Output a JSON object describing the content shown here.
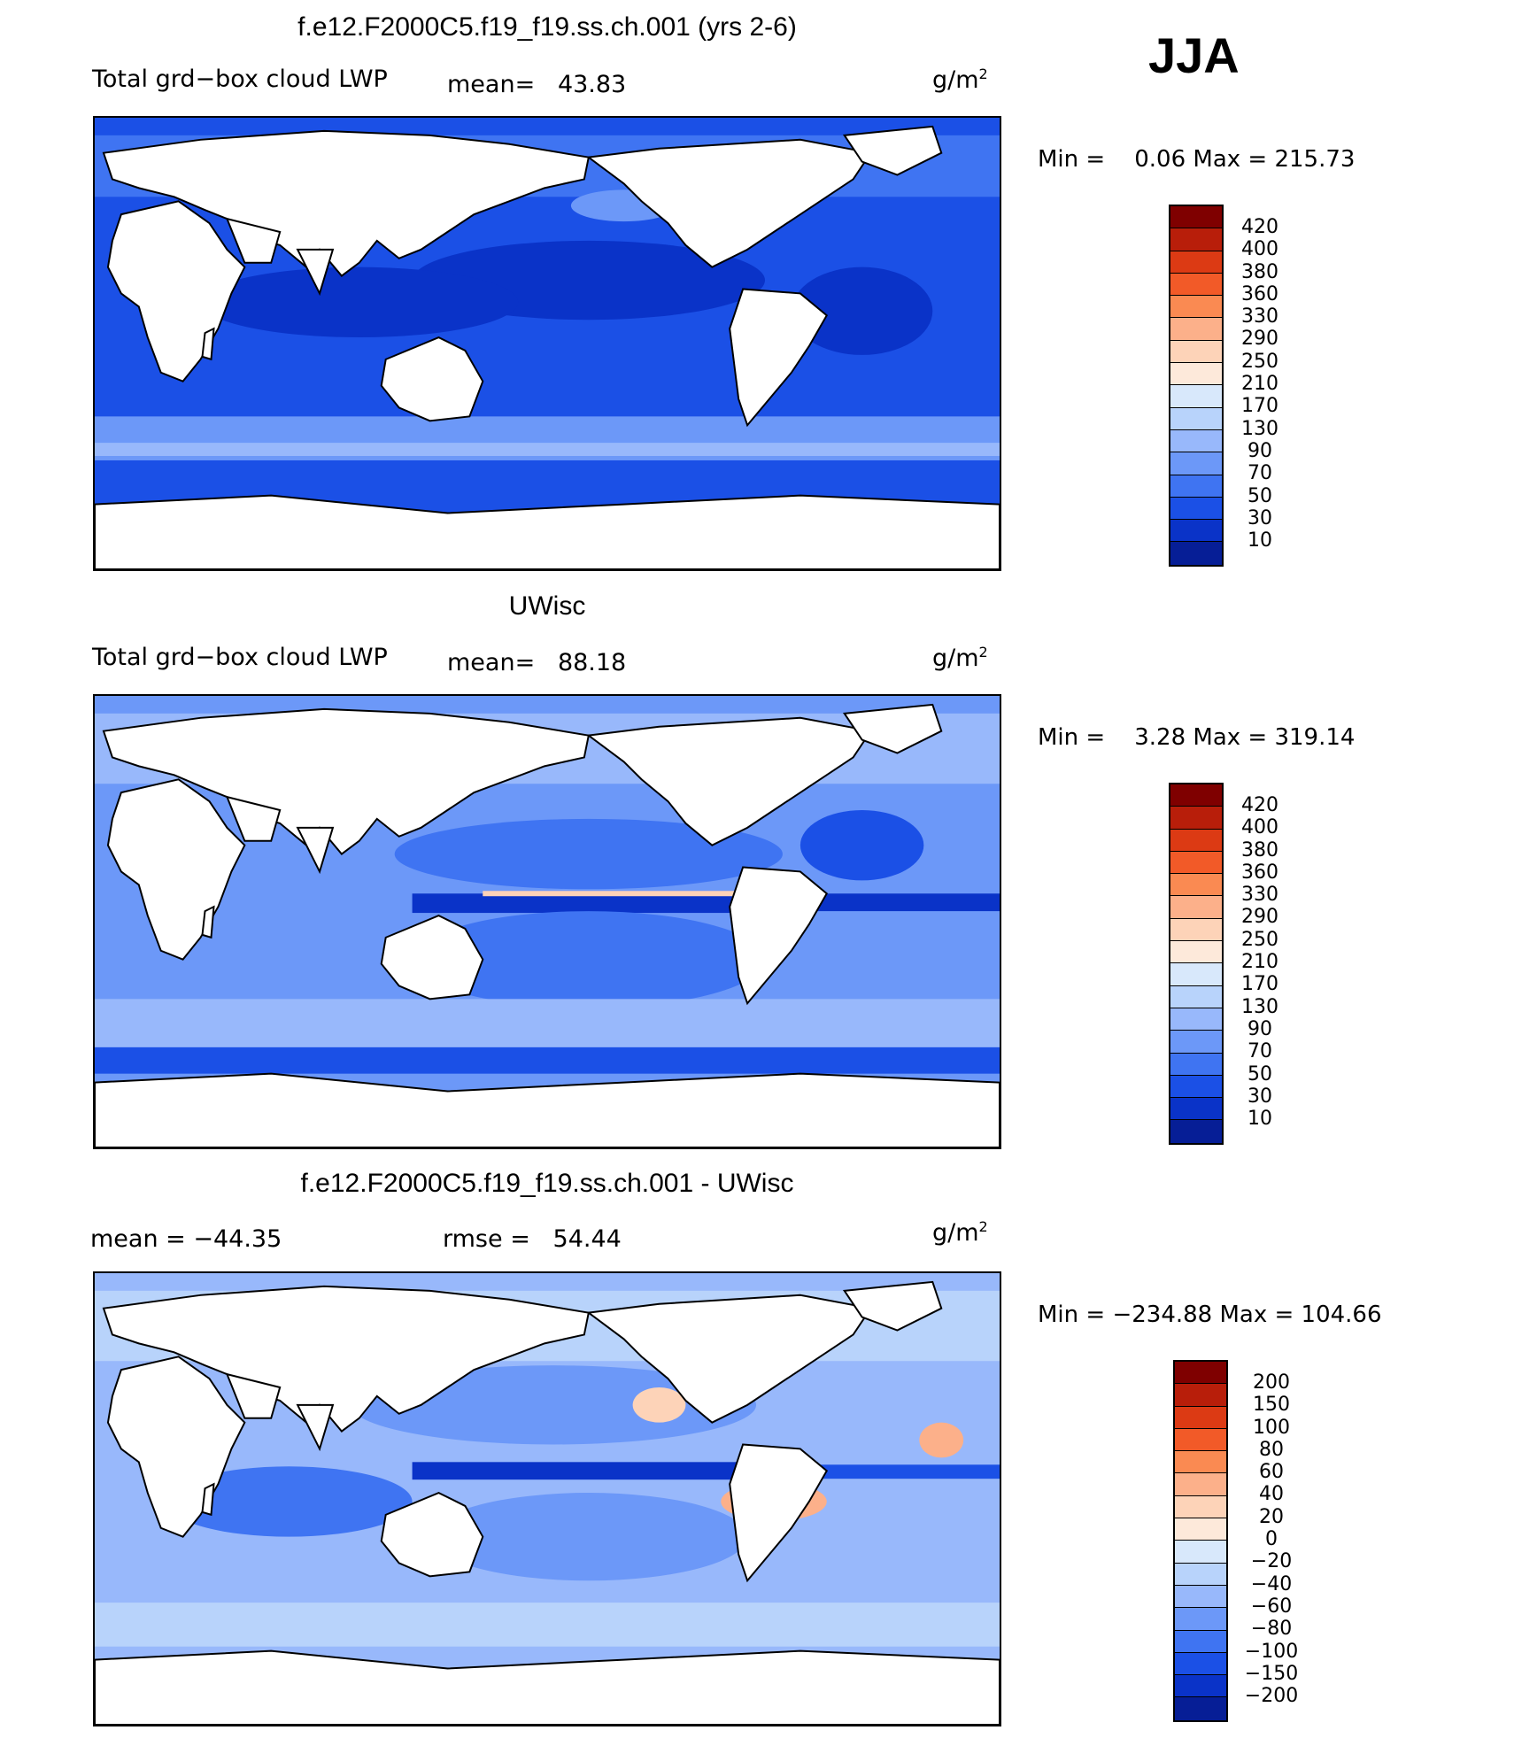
{
  "season": "JJA",
  "panels": [
    {
      "title": "f.e12.F2000C5.f19_f19.ss.ch.001 (yrs 2-6)",
      "variable": "Total grd−box cloud LWP",
      "stat1": "mean=   43.83",
      "stat2": "",
      "units": "g/m",
      "units_exp": "2",
      "minmax": "Min =    0.06 Max = 215.73",
      "colors": [
        "#7f0000",
        "#b81e0a",
        "#dc3a14",
        "#f25a28",
        "#fa8a52",
        "#fcb08a",
        "#fdd3b8",
        "#fde9da",
        "#d8e8fb",
        "#b8d3fb",
        "#98b8fb",
        "#6c98f8",
        "#3f74f2",
        "#1b50e6",
        "#0a33c8",
        "#061e96"
      ],
      "ticks": [
        "420",
        "400",
        "380",
        "360",
        "330",
        "290",
        "250",
        "210",
        "170",
        "130",
        "90",
        "70",
        "50",
        "30",
        "10"
      ],
      "field_style": "control"
    },
    {
      "title": "UWisc",
      "variable": "Total grd−box cloud LWP",
      "stat1": "mean=   88.18",
      "stat2": "",
      "units": "g/m",
      "units_exp": "2",
      "minmax": "Min =    3.28 Max = 319.14",
      "colors": [
        "#7f0000",
        "#b81e0a",
        "#dc3a14",
        "#f25a28",
        "#fa8a52",
        "#fcb08a",
        "#fdd3b8",
        "#fde9da",
        "#d8e8fb",
        "#b8d3fb",
        "#98b8fb",
        "#6c98f8",
        "#3f74f2",
        "#1b50e6",
        "#0a33c8",
        "#061e96"
      ],
      "ticks": [
        "420",
        "400",
        "380",
        "360",
        "330",
        "290",
        "250",
        "210",
        "170",
        "130",
        "90",
        "70",
        "50",
        "30",
        "10"
      ],
      "field_style": "obs"
    },
    {
      "title": "f.e12.F2000C5.f19_f19.ss.ch.001 - UWisc",
      "variable": "mean = −44.35",
      "stat1": "rmse =   54.44",
      "stat2": "",
      "units": "g/m",
      "units_exp": "2",
      "minmax": "Min = −234.88 Max = 104.66",
      "colors": [
        "#7f0000",
        "#b81e0a",
        "#dc3a14",
        "#f25a28",
        "#fa8a52",
        "#fcb08a",
        "#fdd3b8",
        "#fde9da",
        "#d8e8fb",
        "#b8d3fb",
        "#98b8fb",
        "#6c98f8",
        "#3f74f2",
        "#1b50e6",
        "#0a33c8",
        "#061e96"
      ],
      "ticks": [
        "200",
        "150",
        "100",
        "80",
        "60",
        "40",
        "20",
        "0",
        "−20",
        "−40",
        "−60",
        "−80",
        "−100",
        "−150",
        "−200"
      ],
      "field_style": "diff"
    }
  ]
}
